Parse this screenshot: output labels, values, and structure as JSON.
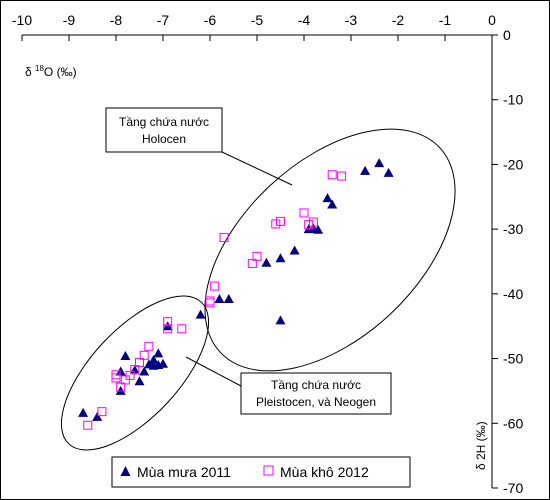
{
  "chart_data": {
    "type": "scatter",
    "xlim": [
      -10,
      0
    ],
    "ylim": [
      -70,
      0
    ],
    "x_ticks": [
      "-10",
      "-9",
      "-8",
      "-7",
      "-6",
      "-5",
      "-4",
      "-3",
      "-2",
      "-1",
      "0"
    ],
    "y_ticks": [
      "0",
      "-10",
      "-20",
      "-30",
      "-40",
      "-50",
      "-60",
      "-70"
    ],
    "x_axis_position": "top",
    "y_axis_position": "right",
    "xlabel": {
      "prefix": "δ ",
      "sup": "18",
      "suffix": "O (‰)"
    },
    "ylabel": "δ 2H (‰)",
    "grid": false,
    "legend_position": "bottom",
    "series": [
      {
        "name": "Mùa mưa 2011",
        "marker": "filled-triangle",
        "color": "#000080",
        "points": [
          [
            -2.2,
            -21.3
          ],
          [
            -2.4,
            -19.8
          ],
          [
            -2.7,
            -21.0
          ],
          [
            -3.4,
            -26.2
          ],
          [
            -3.5,
            -25.2
          ],
          [
            -3.7,
            -30.1
          ],
          [
            -3.8,
            -29.9
          ],
          [
            -3.9,
            -30.0
          ],
          [
            -4.2,
            -33.3
          ],
          [
            -4.5,
            -34.5
          ],
          [
            -4.8,
            -35.2
          ],
          [
            -4.5,
            -44.1
          ],
          [
            -5.6,
            -40.8
          ],
          [
            -5.8,
            -40.8
          ],
          [
            -6.2,
            -43.2
          ],
          [
            -6.9,
            -45.0
          ],
          [
            -7.1,
            -49.2
          ],
          [
            -7.2,
            -50.2
          ],
          [
            -7.0,
            -50.8
          ],
          [
            -7.1,
            -51.0
          ],
          [
            -7.3,
            -50.9
          ],
          [
            -7.2,
            -51.1
          ],
          [
            -7.4,
            -52.0
          ],
          [
            -7.6,
            -51.8
          ],
          [
            -7.8,
            -49.6
          ],
          [
            -7.9,
            -52.0
          ],
          [
            -7.5,
            -53.5
          ],
          [
            -7.9,
            -55.0
          ],
          [
            -8.7,
            -58.4
          ],
          [
            -8.4,
            -59.0
          ]
        ]
      },
      {
        "name": "Mùa khô 2012",
        "marker": "open-square",
        "color": "#FF00FF",
        "points": [
          [
            -3.2,
            -21.8
          ],
          [
            -3.4,
            -21.6
          ],
          [
            -3.8,
            -28.9
          ],
          [
            -3.9,
            -29.3
          ],
          [
            -4.0,
            -27.5
          ],
          [
            -4.5,
            -28.8
          ],
          [
            -4.6,
            -29.2
          ],
          [
            -5.0,
            -34.2
          ],
          [
            -5.1,
            -35.3
          ],
          [
            -5.7,
            -31.3
          ],
          [
            -5.9,
            -38.8
          ],
          [
            -6.0,
            -41.1
          ],
          [
            -6.0,
            -41.4
          ],
          [
            -6.6,
            -45.4
          ],
          [
            -6.9,
            -44.3
          ],
          [
            -6.9,
            -45.4
          ],
          [
            -7.3,
            -48.1
          ],
          [
            -7.4,
            -49.5
          ],
          [
            -7.5,
            -50.6
          ],
          [
            -7.6,
            -51.7
          ],
          [
            -7.7,
            -52.6
          ],
          [
            -7.8,
            -53.3
          ],
          [
            -7.9,
            -54.4
          ],
          [
            -8.0,
            -52.5
          ],
          [
            -8.0,
            -53.0
          ],
          [
            -8.3,
            -58.2
          ],
          [
            -8.6,
            -60.3
          ]
        ]
      }
    ],
    "annotations": [
      {
        "lines": [
          "Tầng chứa nước",
          "Holocen"
        ]
      },
      {
        "lines": [
          "Tầng chứa nước",
          "Pleistocen, và Neogen"
        ]
      }
    ]
  }
}
